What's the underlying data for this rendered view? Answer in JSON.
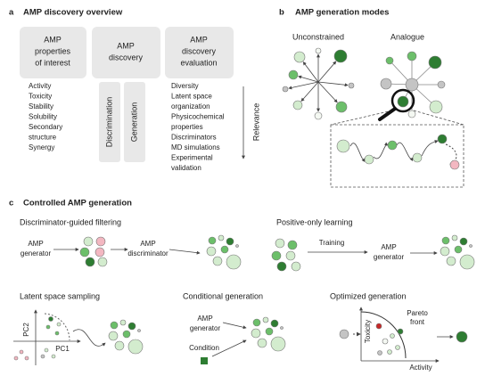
{
  "panel_a": {
    "label": "a",
    "title": "AMP discovery overview",
    "boxes": [
      [
        "AMP",
        "properties",
        "of interest"
      ],
      [
        "AMP",
        "discovery"
      ],
      [
        "AMP",
        "discovery",
        "evaluation"
      ]
    ],
    "properties": [
      "Activity",
      "Toxicity",
      "Stability",
      "Solubility",
      "Secondary",
      "structure",
      "Synergy"
    ],
    "methods": [
      "Discrimination",
      "Generation"
    ],
    "evaluation": [
      "Diversity",
      "Latent space",
      "organization",
      "Physicochemical",
      "properties",
      "Discriminators",
      "MD simulations",
      "Experimental",
      "validation"
    ],
    "arrow_label": "Relevance"
  },
  "panel_b": {
    "label": "b",
    "title": "AMP generation modes",
    "modes": [
      "Unconstrained",
      "Analogue"
    ]
  },
  "panel_c": {
    "label": "c",
    "title": "Controlled AMP generation",
    "filtering": {
      "title": "Discriminator-guided filtering",
      "generator": [
        "AMP",
        "generator"
      ],
      "discriminator": [
        "AMP",
        "discriminator"
      ]
    },
    "positive": {
      "title": "Positive-only learning",
      "training": "Training",
      "generator": [
        "AMP",
        "generator"
      ]
    },
    "latent": {
      "title": "Latent space sampling",
      "y_axis": "PC2",
      "x_axis": "PC1"
    },
    "conditional": {
      "title": "Conditional generation",
      "generator": [
        "AMP",
        "generator"
      ],
      "condition": "Condition"
    },
    "optimized": {
      "title": "Optimized generation",
      "y_axis": "Toxicity",
      "x_axis": "Activity",
      "front": [
        "Pareto",
        "front"
      ]
    }
  }
}
